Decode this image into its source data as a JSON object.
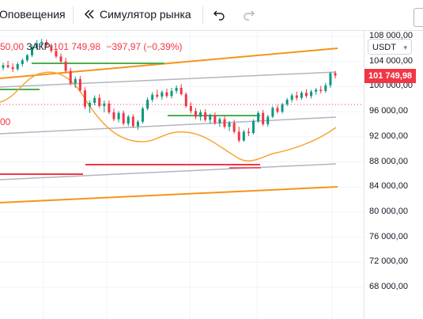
{
  "toolbar": {
    "alerts_label": "Оповещения",
    "replay_label": "Симулятор рынка",
    "replay_icon": "rewind-icon",
    "undo_icon": "undo-icon",
    "redo_icon": "redo-icon"
  },
  "legend": {
    "open_fragment": "50,00",
    "close_label": "ЗАКР",
    "close_value": "101 749,98",
    "change": "−397,97 (−0,39%)"
  },
  "left_label": "00",
  "currency": {
    "selected": "USDT"
  },
  "price_tag": "101 749,98",
  "price_axis": [
    "108 000,00",
    "104 000,00",
    "100 000,00",
    "96 000,00",
    "92 000,00",
    "88 000,00",
    "84 000,00",
    "80 000,00",
    "76 000,00",
    "72 000,00",
    "68 000,00"
  ],
  "colors": {
    "up": "#089981",
    "down": "#f23645",
    "channel_outer": "#f7931a",
    "channel_inner": "#b2b5be",
    "moving_average": "#f7a534",
    "support": "#f23645",
    "resistance": "#4caf50",
    "last_price_line": "#f23645"
  },
  "chart_data": {
    "type": "candlestick",
    "y_range": [
      68000,
      112000
    ],
    "last_price": 101749.98,
    "candles": [
      [
        103000,
        103800,
        102600,
        103400
      ],
      [
        103400,
        104100,
        102900,
        103100
      ],
      [
        103100,
        103700,
        102300,
        102800
      ],
      [
        102800,
        103900,
        102500,
        103600
      ],
      [
        103600,
        104500,
        103200,
        104200
      ],
      [
        104200,
        105200,
        103900,
        105000
      ],
      [
        105000,
        106600,
        104700,
        106300
      ],
      [
        106300,
        107400,
        105900,
        106900
      ],
      [
        106900,
        107600,
        106400,
        107100
      ],
      [
        107100,
        107500,
        106300,
        106600
      ],
      [
        106600,
        106900,
        105400,
        105700
      ],
      [
        105700,
        106100,
        104500,
        104800
      ],
      [
        104800,
        105300,
        103600,
        104000
      ],
      [
        104000,
        104600,
        102200,
        102500
      ],
      [
        102500,
        103000,
        100200,
        100500
      ],
      [
        100500,
        101600,
        99800,
        101200
      ],
      [
        101200,
        101700,
        99100,
        99400
      ],
      [
        99400,
        99900,
        96400,
        96800
      ],
      [
        96800,
        97800,
        95800,
        97400
      ],
      [
        97400,
        98600,
        97000,
        98200
      ],
      [
        98200,
        98800,
        96600,
        96900
      ],
      [
        96900,
        97800,
        95900,
        97300
      ],
      [
        97300,
        97800,
        95600,
        95900
      ],
      [
        95900,
        96500,
        94500,
        94800
      ],
      [
        94800,
        96100,
        94300,
        95800
      ],
      [
        95800,
        96200,
        93800,
        94100
      ],
      [
        94100,
        95500,
        93700,
        95200
      ],
      [
        95200,
        95600,
        93400,
        93700
      ],
      [
        93700,
        94700,
        93100,
        94400
      ],
      [
        94400,
        96800,
        94100,
        96500
      ],
      [
        96500,
        98300,
        96200,
        97900
      ],
      [
        97900,
        99100,
        97500,
        98700
      ],
      [
        98700,
        99500,
        98100,
        98400
      ],
      [
        98400,
        99400,
        97900,
        99100
      ],
      [
        99100,
        99700,
        98200,
        98500
      ],
      [
        98500,
        99800,
        98100,
        99300
      ],
      [
        99300,
        100200,
        98900,
        99800
      ],
      [
        99800,
        100400,
        98600,
        98800
      ],
      [
        98800,
        99100,
        96600,
        96900
      ],
      [
        96900,
        97500,
        95700,
        96100
      ],
      [
        96100,
        96600,
        94800,
        95200
      ],
      [
        95200,
        96300,
        94600,
        95900
      ],
      [
        95900,
        96400,
        94400,
        94700
      ],
      [
        94700,
        95700,
        94100,
        95400
      ],
      [
        95400,
        95900,
        93900,
        94200
      ],
      [
        94200,
        95100,
        93600,
        94800
      ],
      [
        94800,
        95300,
        93300,
        93600
      ],
      [
        93600,
        94500,
        92900,
        94200
      ],
      [
        94200,
        94700,
        92500,
        92800
      ],
      [
        92800,
        93600,
        91100,
        91400
      ],
      [
        91400,
        93100,
        91200,
        92800
      ],
      [
        92800,
        93400,
        92100,
        92600
      ],
      [
        92600,
        94800,
        92400,
        94500
      ],
      [
        94500,
        96100,
        94200,
        95800
      ],
      [
        95800,
        96300,
        93700,
        94000
      ],
      [
        94000,
        95500,
        93600,
        95200
      ],
      [
        95200,
        96900,
        95000,
        96600
      ],
      [
        96600,
        97100,
        95700,
        96000
      ],
      [
        96000,
        97400,
        95700,
        97200
      ],
      [
        97200,
        98200,
        96900,
        97900
      ],
      [
        97900,
        98900,
        97500,
        98600
      ],
      [
        98600,
        99200,
        97800,
        98200
      ],
      [
        98200,
        99300,
        97900,
        99000
      ],
      [
        99000,
        99600,
        98200,
        98500
      ],
      [
        98500,
        99500,
        98100,
        99200
      ],
      [
        99200,
        99800,
        98700,
        99500
      ],
      [
        99500,
        100100,
        98900,
        99300
      ],
      [
        99300,
        100600,
        99000,
        100200
      ],
      [
        100200,
        102300,
        99800,
        102150
      ],
      [
        102150,
        102500,
        101300,
        101750
      ]
    ]
  }
}
